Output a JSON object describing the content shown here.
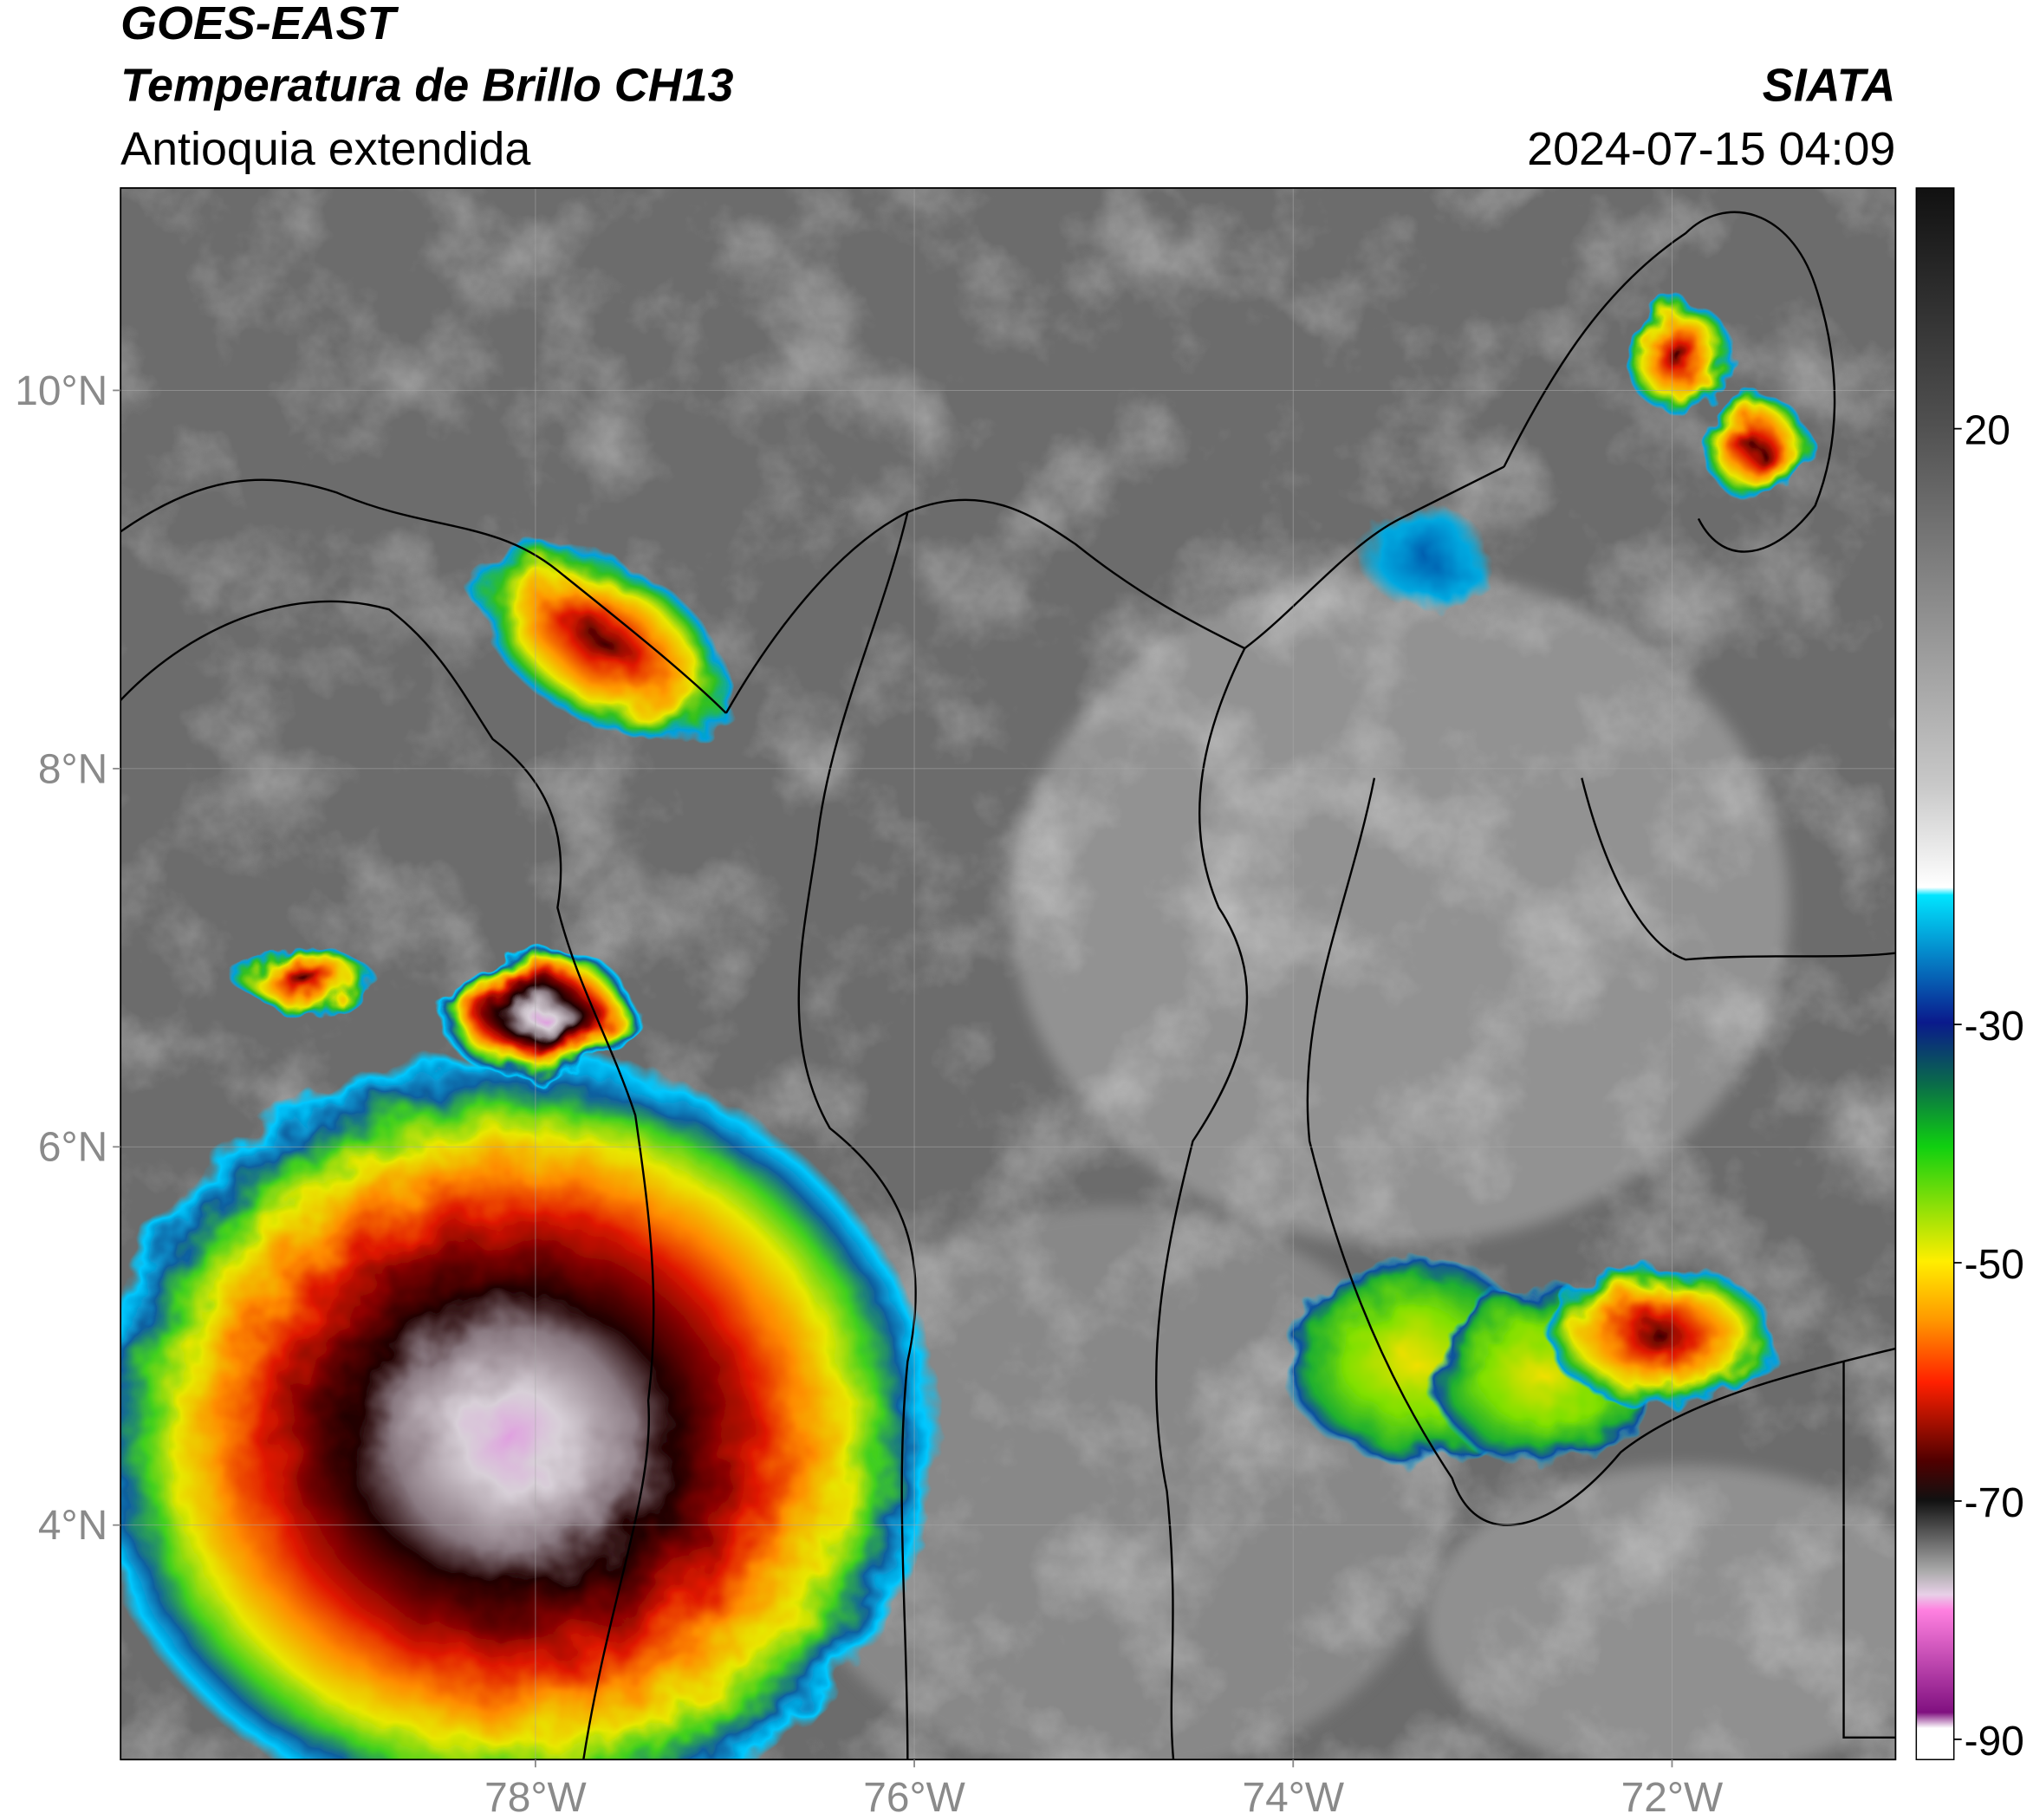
{
  "header": {
    "title": "GOES-EAST",
    "subtitle": "Temperatura de Brillo CH13",
    "region": "Antioquia extendida",
    "source": "SIATA",
    "datetime": "2024-07-15 04:09"
  },
  "map": {
    "xlim": [
      -80.19,
      -70.82
    ],
    "ylim": [
      2.76,
      11.07
    ],
    "lat_ticks": [
      {
        "value": 10,
        "label": "10°N"
      },
      {
        "value": 8,
        "label": "8°N"
      },
      {
        "value": 6,
        "label": "6°N"
      },
      {
        "value": 4,
        "label": "4°N"
      }
    ],
    "lon_ticks": [
      {
        "value": -78,
        "label": "78°W"
      },
      {
        "value": -76,
        "label": "76°W"
      },
      {
        "value": -74,
        "label": "74°W"
      },
      {
        "value": -72,
        "label": "72°W"
      }
    ]
  },
  "colorbar": {
    "lim": [
      -91.7,
      40.2
    ],
    "ticks": [
      20,
      -30,
      -50,
      -70,
      -90
    ]
  }
}
